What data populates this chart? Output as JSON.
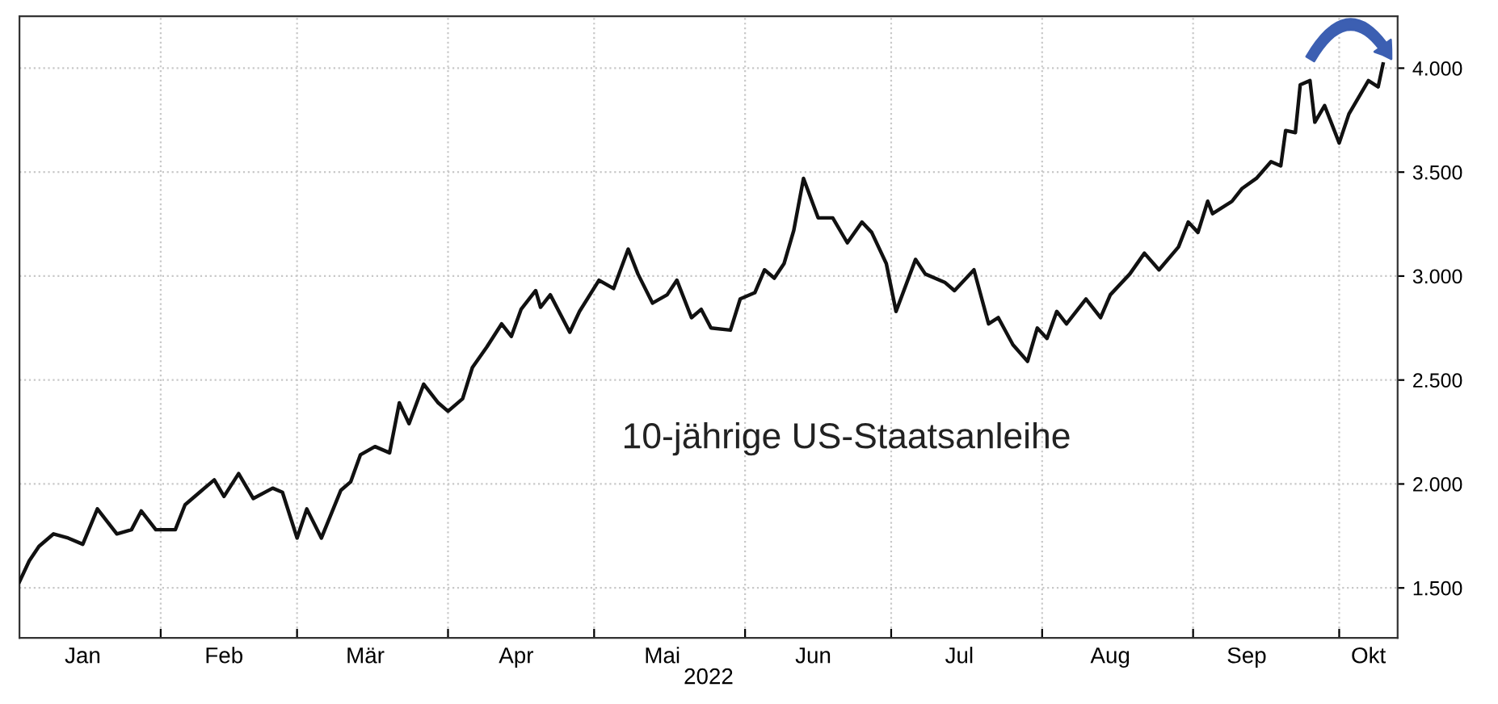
{
  "chart_data": {
    "type": "line",
    "xlabel": "2022",
    "annotations": [
      "10-jährige US-Staatsanleihe"
    ],
    "x": [
      "2022-01-03",
      "2022-01-05",
      "2022-01-07",
      "2022-01-10",
      "2022-01-13",
      "2022-01-16",
      "2022-01-19",
      "2022-01-23",
      "2022-01-26",
      "2022-01-28",
      "2022-01-31",
      "2022-02-04",
      "2022-02-06",
      "2022-02-09",
      "2022-02-12",
      "2022-02-14",
      "2022-02-17",
      "2022-02-20",
      "2022-02-24",
      "2022-02-26",
      "2022-03-01",
      "2022-03-03",
      "2022-03-06",
      "2022-03-10",
      "2022-03-12",
      "2022-03-14",
      "2022-03-17",
      "2022-03-20",
      "2022-03-22",
      "2022-03-24",
      "2022-03-27",
      "2022-03-30",
      "2022-04-01",
      "2022-04-04",
      "2022-04-06",
      "2022-04-09",
      "2022-04-12",
      "2022-04-14",
      "2022-04-16",
      "2022-04-19",
      "2022-04-20",
      "2022-04-22",
      "2022-04-26",
      "2022-04-28",
      "2022-05-02",
      "2022-05-05",
      "2022-05-08",
      "2022-05-10",
      "2022-05-13",
      "2022-05-16",
      "2022-05-18",
      "2022-05-21",
      "2022-05-23",
      "2022-05-25",
      "2022-05-29",
      "2022-05-31",
      "2022-06-03",
      "2022-06-05",
      "2022-06-07",
      "2022-06-09",
      "2022-06-11",
      "2022-06-13",
      "2022-06-16",
      "2022-06-19",
      "2022-06-22",
      "2022-06-25",
      "2022-06-27",
      "2022-06-30",
      "2022-07-02",
      "2022-07-06",
      "2022-07-08",
      "2022-07-12",
      "2022-07-14",
      "2022-07-18",
      "2022-07-21",
      "2022-07-23",
      "2022-07-26",
      "2022-07-29",
      "2022-07-31",
      "2022-08-02",
      "2022-08-04",
      "2022-08-06",
      "2022-08-10",
      "2022-08-13",
      "2022-08-15",
      "2022-08-19",
      "2022-08-22",
      "2022-08-25",
      "2022-08-29",
      "2022-08-31",
      "2022-09-02",
      "2022-09-04",
      "2022-09-05",
      "2022-09-09",
      "2022-09-11",
      "2022-09-14",
      "2022-09-17",
      "2022-09-19",
      "2022-09-20",
      "2022-09-22",
      "2022-09-23",
      "2022-09-25",
      "2022-09-26",
      "2022-09-28",
      "2022-10-01",
      "2022-10-03",
      "2022-10-07",
      "2022-10-09",
      "2022-10-10"
    ],
    "series": [
      {
        "color": "#111111",
        "values": [
          1.53,
          1.63,
          1.7,
          1.76,
          1.74,
          1.71,
          1.88,
          1.76,
          1.78,
          1.87,
          1.78,
          1.78,
          1.9,
          1.96,
          2.02,
          1.94,
          2.05,
          1.93,
          1.98,
          1.96,
          1.74,
          1.88,
          1.74,
          1.97,
          2.01,
          2.14,
          2.18,
          2.15,
          2.39,
          2.29,
          2.48,
          2.39,
          2.35,
          2.41,
          2.56,
          2.66,
          2.77,
          2.71,
          2.84,
          2.93,
          2.85,
          2.91,
          2.73,
          2.83,
          2.98,
          2.94,
          3.13,
          3.01,
          2.87,
          2.91,
          2.98,
          2.8,
          2.84,
          2.75,
          2.74,
          2.89,
          2.92,
          3.03,
          2.99,
          3.06,
          3.22,
          3.47,
          3.28,
          3.28,
          3.16,
          3.26,
          3.21,
          3.06,
          2.83,
          3.08,
          3.01,
          2.97,
          2.93,
          3.03,
          2.77,
          2.8,
          2.67,
          2.59,
          2.75,
          2.7,
          2.83,
          2.77,
          2.89,
          2.8,
          2.91,
          3.01,
          3.11,
          3.03,
          3.14,
          3.26,
          3.21,
          3.36,
          3.3,
          3.36,
          3.42,
          3.47,
          3.55,
          3.53,
          3.7,
          3.69,
          3.92,
          3.94,
          3.74,
          3.82,
          3.64,
          3.78,
          3.94,
          3.91,
          4.02
        ]
      }
    ],
    "xlim": [
      "2022-01-03",
      "2022-10-13"
    ],
    "xticks": [
      {
        "value": "2022-01-16",
        "label": "Jan"
      },
      {
        "value": "2022-02-14",
        "label": "Feb"
      },
      {
        "value": "2022-03-15",
        "label": "Mär"
      },
      {
        "value": "2022-04-15",
        "label": "Apr"
      },
      {
        "value": "2022-05-15",
        "label": "Mai"
      },
      {
        "value": "2022-06-15",
        "label": "Jun"
      },
      {
        "value": "2022-07-15",
        "label": "Jul"
      },
      {
        "value": "2022-08-15",
        "label": "Aug"
      },
      {
        "value": "2022-09-12",
        "label": "Sep"
      },
      {
        "value": "2022-10-07",
        "label": "Okt"
      },
      {
        "value": "2022-02-01",
        "label": null
      },
      {
        "value": "2022-03-01",
        "label": null
      },
      {
        "value": "2022-04-01",
        "label": null
      },
      {
        "value": "2022-05-01",
        "label": null
      },
      {
        "value": "2022-06-01",
        "label": null
      },
      {
        "value": "2022-07-01",
        "label": null
      },
      {
        "value": "2022-08-01",
        "label": null
      },
      {
        "value": "2022-09-01",
        "label": null
      },
      {
        "value": "2022-10-01",
        "label": null
      }
    ],
    "ylim": [
      1.26,
      4.25
    ],
    "yticks": [
      {
        "value": 1.5,
        "label": "1.500"
      },
      {
        "value": 2.0,
        "label": "2.000"
      },
      {
        "value": 2.5,
        "label": "2.500"
      },
      {
        "value": 3.0,
        "label": "3.000"
      },
      {
        "value": 3.5,
        "label": "3.500"
      },
      {
        "value": 4.0,
        "label": "4.000"
      }
    ],
    "grid": true,
    "line_style": "solid"
  }
}
